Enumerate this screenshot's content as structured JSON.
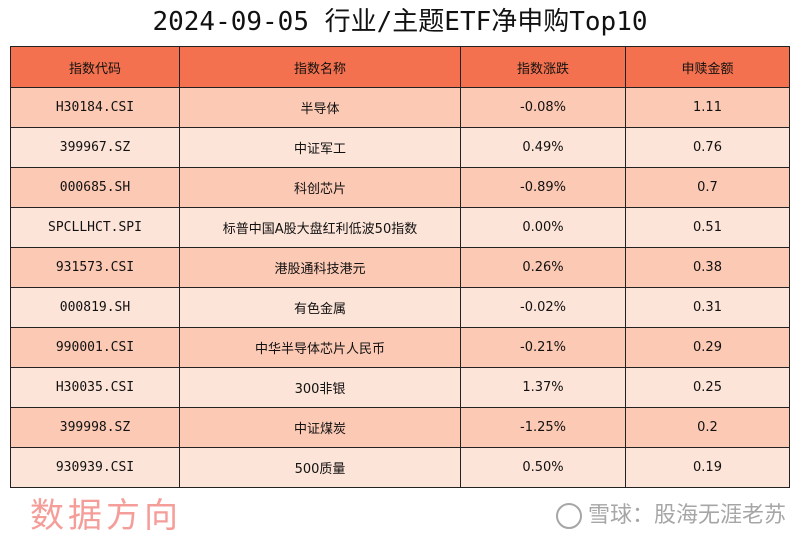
{
  "title": "2024-09-05 行业/主题ETF净申购Top10",
  "headers": [
    "指数代码",
    "指数名称",
    "指数涨跌",
    "申赎金额"
  ],
  "rows": [
    [
      "H30184.CSI",
      "半导体",
      "-0.08%",
      "1.11"
    ],
    [
      "399967.SZ",
      "中证军工",
      "0.49%",
      "0.76"
    ],
    [
      "000685.SH",
      "科创芯片",
      "-0.89%",
      "0.7"
    ],
    [
      "SPCLLHCT.SPI",
      "标普中国A股大盘红利低波50指数",
      "0.00%",
      "0.51"
    ],
    [
      "931573.CSI",
      "港股通科技港元",
      "0.26%",
      "0.38"
    ],
    [
      "000819.SH",
      "有色金属",
      "-0.02%",
      "0.31"
    ],
    [
      "990001.CSI",
      "中华半导体芯片人民币",
      "-0.21%",
      "0.29"
    ],
    [
      "H30035.CSI",
      "300非银",
      "1.37%",
      "0.25"
    ],
    [
      "399998.SZ",
      "中证煤炭",
      "-1.25%",
      "0.2"
    ],
    [
      "930939.CSI",
      "500质量",
      "0.50%",
      "0.19"
    ]
  ],
  "watermark": "数据方向",
  "source_watermark": "雪球：股海无涯老苏",
  "colors": {
    "header": "#f3714e",
    "row_odd": "#fcc9b5",
    "row_even": "#fde4d8"
  }
}
